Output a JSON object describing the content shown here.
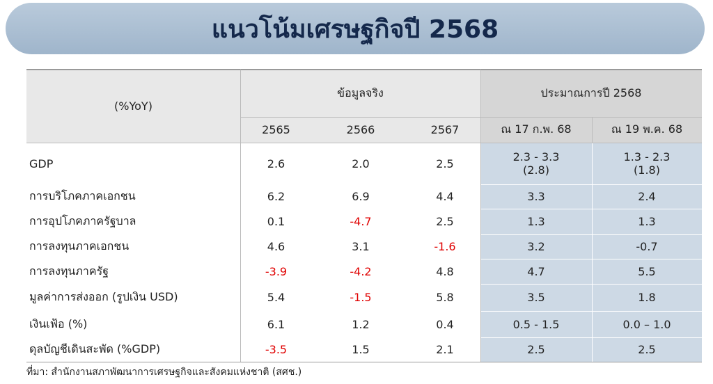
{
  "header": {
    "title": "แนวโน้มเศรษฐกิจปี 2568"
  },
  "table": {
    "corner": "(%YoY)",
    "groups": [
      "ข้อมูลจริง",
      "ประมาณการปี 2568"
    ],
    "columns": [
      "2565",
      "2566",
      "2567",
      "ณ 17 ก.พ. 68",
      "ณ 19 พ.ค. 68"
    ],
    "rows": [
      [
        "GDP",
        "2.6",
        "2.0",
        "2.5",
        [
          "2.3 - 3.3",
          "(2.8)"
        ],
        [
          "1.3 - 2.3",
          "(1.8)"
        ]
      ],
      [
        "การบริโภคภาคเอกชน",
        "6.2",
        "6.9",
        "4.4",
        "3.3",
        "2.4"
      ],
      [
        "การอุปโภคภาครัฐบาล",
        "0.1",
        "-4.7",
        "2.5",
        "1.3",
        "1.3"
      ],
      [
        "การลงทุนภาคเอกชน",
        "4.6",
        "3.1",
        "-1.6",
        "3.2",
        "-0.7"
      ],
      [
        "การลงทุนภาครัฐ",
        "-3.9",
        "-4.2",
        "4.8",
        "4.7",
        "5.5"
      ],
      [
        "มูลค่าการส่งออก (รูปเงิน USD)",
        "5.4",
        "-1.5",
        "5.8",
        "3.5",
        "1.8"
      ],
      [
        "เงินเฟ้อ (%)",
        "6.1",
        "1.2",
        "0.4",
        "0.5 - 1.5",
        "0.0 – 1.0"
      ],
      [
        "ดุลบัญชีเดินสะพัด (%GDP)",
        "-3.5",
        "1.5",
        "2.1",
        "2.5",
        "2.5"
      ]
    ]
  },
  "footer": {
    "source": "ที่มา: สำนักงานสภาพัฒนาการเศรษฐกิจและสังคมแห่งชาติ (สศช.)"
  }
}
